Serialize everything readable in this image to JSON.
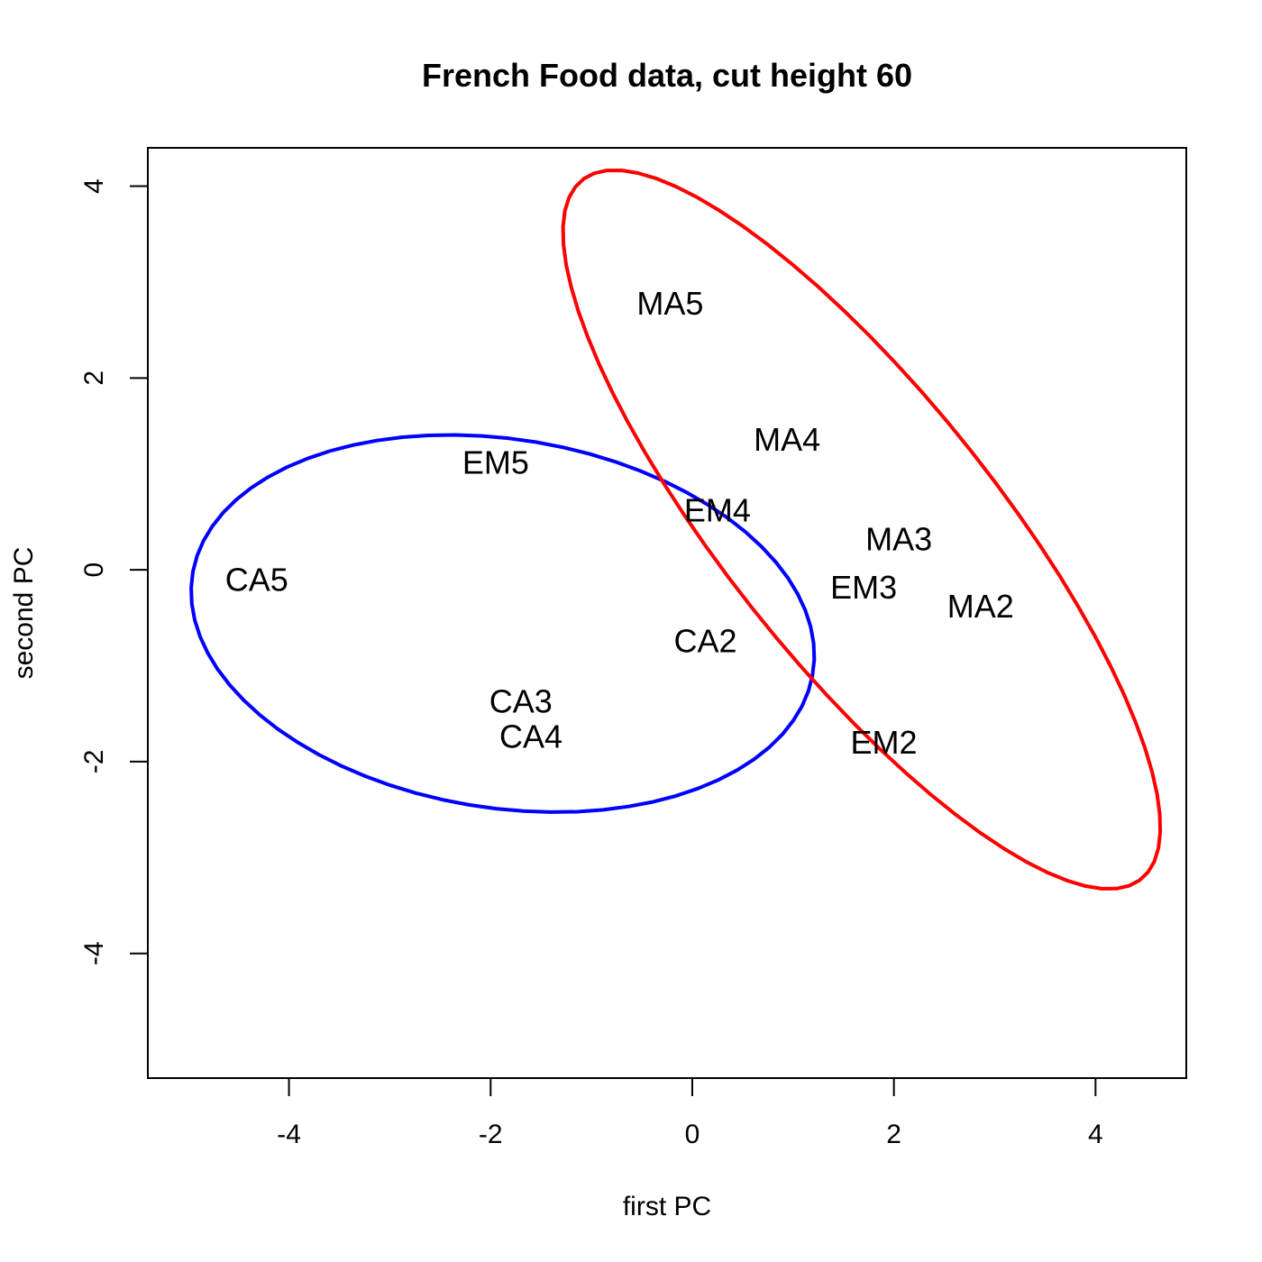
{
  "chart_data": {
    "type": "scatter",
    "title": "French Food data, cut height 60",
    "xlabel": "first PC",
    "ylabel": "second PC",
    "xlim": [
      -5.4,
      4.9
    ],
    "ylim": [
      -5.3,
      4.4
    ],
    "xticks": [
      -4,
      -2,
      0,
      2,
      4
    ],
    "yticks": [
      -4,
      -2,
      0,
      2,
      4
    ],
    "grid": false,
    "points": [
      {
        "label": "MA5",
        "x": -0.22,
        "y": 2.78
      },
      {
        "label": "MA4",
        "x": 0.94,
        "y": 1.36
      },
      {
        "label": "EM5",
        "x": -1.95,
        "y": 1.12
      },
      {
        "label": "EM4",
        "x": 0.25,
        "y": 0.62
      },
      {
        "label": "MA3",
        "x": 2.05,
        "y": 0.32
      },
      {
        "label": "CA5",
        "x": -4.32,
        "y": -0.1
      },
      {
        "label": "EM3",
        "x": 1.7,
        "y": -0.18
      },
      {
        "label": "MA2",
        "x": 2.86,
        "y": -0.38
      },
      {
        "label": "CA2",
        "x": 0.13,
        "y": -0.74
      },
      {
        "label": "CA3",
        "x": -1.7,
        "y": -1.37
      },
      {
        "label": "CA4",
        "x": -1.6,
        "y": -1.74
      },
      {
        "label": "EM2",
        "x": 1.9,
        "y": -1.8
      }
    ],
    "ellipses": [
      {
        "color": "#0000FF",
        "cx": -1.88,
        "cy": -0.56,
        "semi_major": 3.12,
        "semi_minor": 1.92,
        "angle_deg": -10
      },
      {
        "color": "#FF0000",
        "cx": 1.68,
        "cy": 0.42,
        "semi_major": 4.58,
        "semi_minor": 1.36,
        "angle_deg": -53
      }
    ]
  }
}
